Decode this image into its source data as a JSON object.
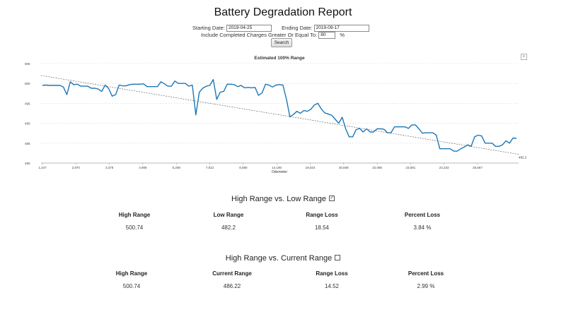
{
  "page": {
    "title": "Battery Degradation Report"
  },
  "form": {
    "start_label": "Starting Date:",
    "start_value": "2019-04-25",
    "end_label": "Ending Date:",
    "end_value": "2019-09-17",
    "charge_label": "Include Completed Charges Greater Or Equal To:",
    "charge_value": "80",
    "charge_unit": "%",
    "search_label": "Search"
  },
  "chart_data": {
    "type": "line",
    "title": "Estimated 100% Range",
    "xlabel": "Odometer",
    "ylabel": "",
    "x_ticks": [
      "1,247",
      "2,870",
      "3,378",
      "4,908",
      "5,208",
      "7,812",
      "8,580",
      "14,190",
      "19,024",
      "20,848",
      "22,086",
      "23,081",
      "24,233",
      "25,667"
    ],
    "y_ticks": [
      "480",
      "485",
      "490",
      "495",
      "500",
      "505"
    ],
    "ylim": [
      480,
      505
    ],
    "grid": true,
    "series": [
      {
        "values": [
          499.5,
          499.6,
          499.5,
          499.5,
          499.5,
          499.5,
          499.1,
          497.2,
          500.4,
          499.7,
          499.8,
          499.3,
          499.3,
          499.3,
          498.8,
          498.8,
          498.6,
          498.0,
          499.6,
          498.7,
          496.8,
          497.2,
          499.6,
          499.4,
          499.4,
          499.7,
          499.8,
          499.8,
          499.8,
          499.9,
          499.2,
          499.2,
          499.2,
          499.2,
          500.4,
          499.9,
          499.3,
          499.3,
          500.6,
          500.0,
          500.0,
          500.0,
          499.3,
          499.6,
          492.1,
          497.8,
          498.8,
          499.3,
          499.5,
          501.0,
          496.0,
          497.8,
          498.0,
          499.8,
          499.8,
          499.7,
          499.2,
          499.5,
          498.9,
          499.0,
          498.9,
          499.0,
          497.0,
          497.6,
          499.8,
          499.6,
          499.1,
          499.6,
          499.7,
          499.6,
          496.0,
          491.6,
          492.2,
          493.0,
          492.5,
          493.2,
          493.0,
          493.5,
          494.6,
          495.0,
          493.6,
          492.6,
          492.3,
          492.0,
          491.0,
          490.0,
          491.5,
          488.6,
          486.6,
          486.6,
          488.4,
          488.7,
          487.8,
          488.6,
          487.8,
          487.8,
          488.6,
          488.6,
          488.5,
          487.6,
          487.6,
          489.1,
          489.1,
          489.1,
          489.1,
          488.7,
          489.6,
          489.6,
          488.6,
          487.5,
          487.6,
          487.6,
          487.6,
          487.0,
          483.6,
          483.6,
          483.6,
          483.6,
          483.0,
          483.0,
          483.6,
          484.0,
          484.6,
          484.2,
          486.6,
          487.0,
          486.8,
          485.0,
          485.0,
          485.0,
          484.2,
          484.2,
          484.6,
          485.6,
          485.0,
          486.3,
          486.2
        ]
      }
    ],
    "trendline": {
      "end_label": "482.2"
    }
  },
  "section1": {
    "title": "High Range vs. Low Range",
    "checked": "✓",
    "headers": [
      "High Range",
      "Low Range",
      "Range Loss",
      "Percent Loss"
    ],
    "values": [
      "500.74",
      "482.2",
      "18.54",
      "3.84 %"
    ]
  },
  "section2": {
    "title": "High Range vs. Current Range",
    "checked": "",
    "headers": [
      "High Range",
      "Current Range",
      "Range Loss",
      "Percent Loss"
    ],
    "values": [
      "500.74",
      "486.22",
      "14.52",
      "2.99 %"
    ]
  },
  "colors": {
    "line": "#1f77b4",
    "trend": "#555555",
    "grid": "#d9d9d9"
  }
}
